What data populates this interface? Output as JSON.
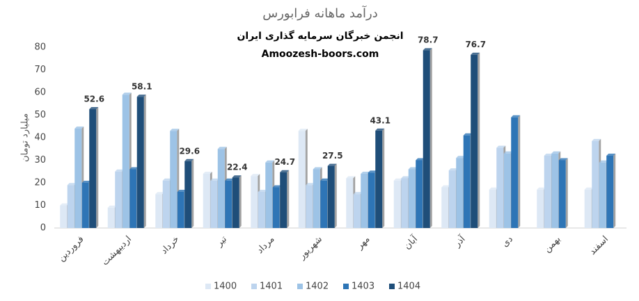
{
  "chart_data": {
    "type": "bar",
    "title": "درآمد ماهانه فرابورس",
    "subtitle": [
      "انجمن خبرگان سرمایه گذاری ایران",
      "Amoozesh-boors.com"
    ],
    "y_label": "میلیارد تومان",
    "categories": [
      "فروردین",
      "اردیبهشت",
      "خرداد",
      "تیر",
      "مرداد",
      "شهریور",
      "مهر",
      "آبان",
      "آذر",
      "دی",
      "بهمن",
      "اسفند"
    ],
    "series": [
      {
        "name": "1400",
        "color": "#dde8f5",
        "values": [
          10,
          9,
          15,
          24,
          23,
          43,
          22,
          21,
          18,
          17,
          17,
          17
        ]
      },
      {
        "name": "1401",
        "color": "#bdd4ee",
        "values": [
          19,
          25,
          21,
          21,
          16,
          19,
          15,
          22,
          25.5,
          35.5,
          32,
          38.5
        ]
      },
      {
        "name": "1402",
        "color": "#9dc3e6",
        "values": [
          44,
          59,
          43,
          35,
          29,
          26,
          24,
          26,
          31,
          33,
          33,
          29
        ]
      },
      {
        "name": "1403",
        "color": "#2e75b6",
        "values": [
          20,
          26,
          16,
          21,
          18,
          21,
          24.5,
          30,
          41,
          49,
          30,
          32
        ]
      },
      {
        "name": "1404",
        "color": "#1f4e79",
        "data_labels": true,
        "values": [
          52.6,
          58.1,
          29.6,
          22.4,
          24.7,
          27.5,
          43.1,
          78.7,
          76.7,
          null,
          null,
          null
        ]
      }
    ],
    "ylim": [
      0,
      80
    ],
    "yticks": [
      0,
      10,
      20,
      30,
      40,
      50,
      60,
      70,
      80
    ],
    "grid": false,
    "legend": "bottom"
  }
}
